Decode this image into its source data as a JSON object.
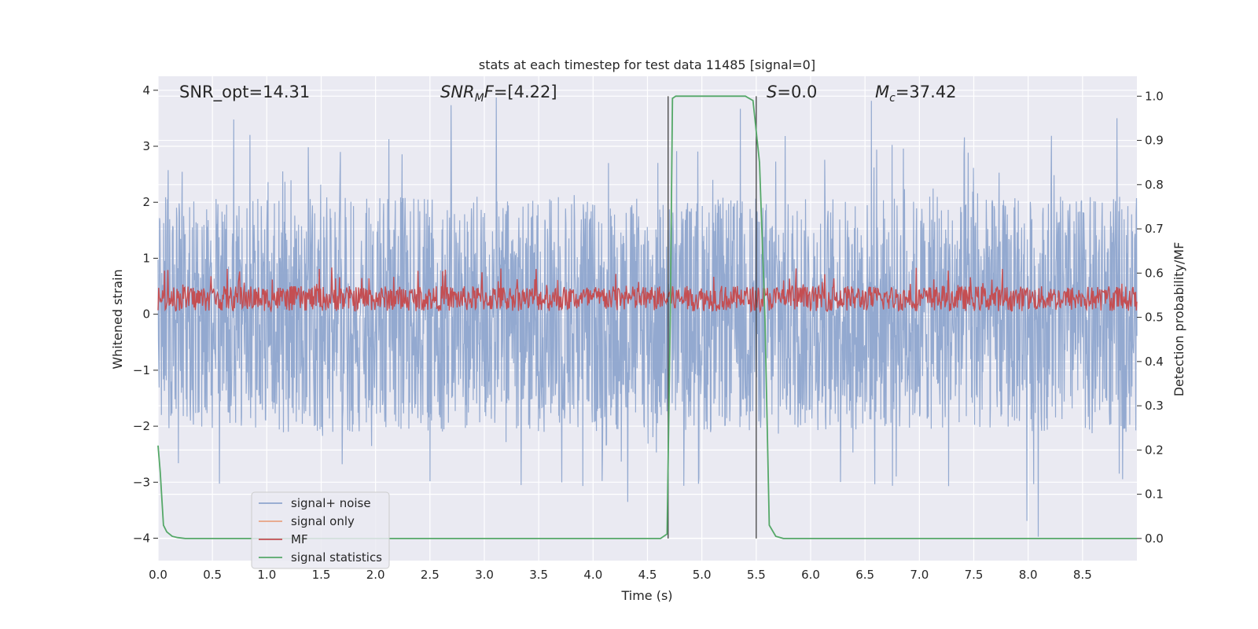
{
  "chart_data": {
    "type": "line",
    "title": "stats at each timestep for test data 11485 [signal=0]",
    "xlabel": "Time (s)",
    "ylabel": "Whitened strain",
    "ylabel_right": "Detection probability/MF",
    "xlim": [
      0.0,
      9.0
    ],
    "ylim": [
      -4.4,
      4.25
    ],
    "ylim_right": [
      -0.05,
      1.045
    ],
    "xticks": [
      "0.0",
      "0.5",
      "1.0",
      "1.5",
      "2.0",
      "2.5",
      "3.0",
      "3.5",
      "4.0",
      "4.5",
      "5.0",
      "5.5",
      "6.0",
      "6.5",
      "7.0",
      "7.5",
      "8.0",
      "8.5"
    ],
    "xtick_values": [
      0,
      0.5,
      1,
      1.5,
      2,
      2.5,
      3,
      3.5,
      4,
      4.5,
      5,
      5.5,
      6,
      6.5,
      7,
      7.5,
      8,
      8.5
    ],
    "yticks": [
      "4",
      "3",
      "2",
      "1",
      "0",
      "−1",
      "−2",
      "−3",
      "−4"
    ],
    "ytick_values": [
      4,
      3,
      2,
      1,
      0,
      -1,
      -2,
      -3,
      -4
    ],
    "yticks_right": [
      "1.0",
      "0.9",
      "0.8",
      "0.7",
      "0.6",
      "0.5",
      "0.4",
      "0.3",
      "0.2",
      "0.1",
      "0.0"
    ],
    "ytick_values_right": [
      1,
      0.9,
      0.8,
      0.7,
      0.6,
      0.5,
      0.4,
      0.3,
      0.2,
      0.1,
      0
    ],
    "grid": true,
    "legend_position": "lower-left",
    "annotations": {
      "snr_opt": "SNR_opt=14.31",
      "snr_mf_sym": "SNR",
      "snr_mf_sub": "M",
      "snr_mf_tail": "F",
      "snr_mf_val": "=[4.22]",
      "stat_sym": "S",
      "stat_val": "=0.0",
      "mc_sym": "M",
      "mc_sub": "c",
      "mc_val": "=37.42"
    },
    "vlines": [
      4.69,
      5.5
    ],
    "vline_range_right": [
      0.0,
      1.0
    ],
    "series": [
      {
        "name": "signal+ noise",
        "color": "#8ea5cd",
        "axis": "left",
        "description": "whitened noise, spikes between about -3.5 and 3.9"
      },
      {
        "name": "signal only",
        "color": "#e8a383",
        "axis": "left",
        "values": []
      },
      {
        "name": "MF",
        "color": "#c44e52",
        "axis": "left",
        "description": "matched-filter output fluctuating between about 0.0 and 1.0"
      },
      {
        "name": "signal statistics",
        "color": "#55a868",
        "axis": "right",
        "x": [
          0.0,
          0.02,
          0.05,
          0.08,
          0.13,
          0.18,
          0.25,
          0.4,
          1.0,
          2.0,
          3.0,
          4.0,
          4.5,
          4.62,
          4.68,
          4.71,
          4.73,
          4.76,
          4.8,
          4.9,
          5.0,
          5.2,
          5.4,
          5.47,
          5.53,
          5.58,
          5.62,
          5.68,
          5.75,
          6.0,
          7.0,
          8.0,
          9.0
        ],
        "y": [
          0.21,
          0.15,
          0.03,
          0.015,
          0.005,
          0.002,
          0.0,
          0.0,
          0.0,
          0.0,
          0.0,
          0.0,
          0.0,
          0.0,
          0.01,
          0.5,
          0.995,
          1.0,
          1.0,
          1.0,
          1.0,
          1.0,
          1.0,
          0.99,
          0.85,
          0.5,
          0.03,
          0.005,
          0.0,
          0.0,
          0.0,
          0.0,
          0.0
        ]
      }
    ]
  }
}
